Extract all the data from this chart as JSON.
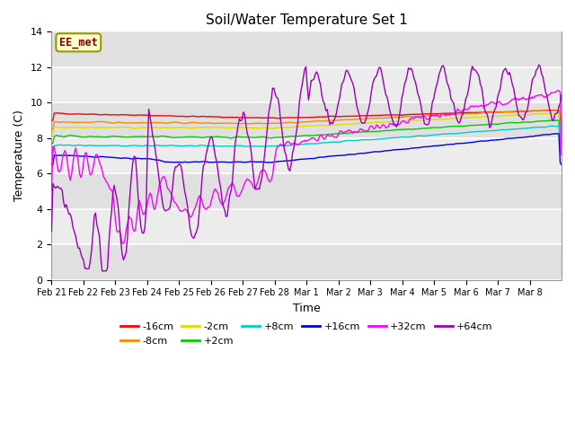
{
  "title": "Soil/Water Temperature Set 1",
  "xlabel": "Time",
  "ylabel": "Temperature (C)",
  "ylim": [
    0,
    14
  ],
  "background_color": "#d8d8d8",
  "plot_bg_light": "#e8e8e8",
  "plot_bg_dark": "#d0d0d0",
  "annotation_text": "EE_met",
  "annotation_box_color": "#ffffcc",
  "annotation_text_color": "#800000",
  "annotation_border_color": "#999900",
  "x_tick_labels": [
    "Feb 21",
    "Feb 22",
    "Feb 23",
    "Feb 24",
    "Feb 25",
    "Feb 26",
    "Feb 27",
    "Feb 28",
    "Mar 1",
    "Mar 2",
    "Mar 3",
    "Mar 4",
    "Mar 5",
    "Mar 6",
    "Mar 7",
    "Mar 8"
  ],
  "legend_entries": [
    [
      "-16cm",
      "#ff0000"
    ],
    [
      "-8cm",
      "#ff8800"
    ],
    [
      "-2cm",
      "#ffff00"
    ],
    [
      "+2cm",
      "#00cc00"
    ],
    [
      "+8cm",
      "#00cccc"
    ],
    [
      "+16cm",
      "#0000ff"
    ],
    [
      "+32cm",
      "#ff00ff"
    ],
    [
      "+64cm",
      "#8800bb"
    ]
  ]
}
